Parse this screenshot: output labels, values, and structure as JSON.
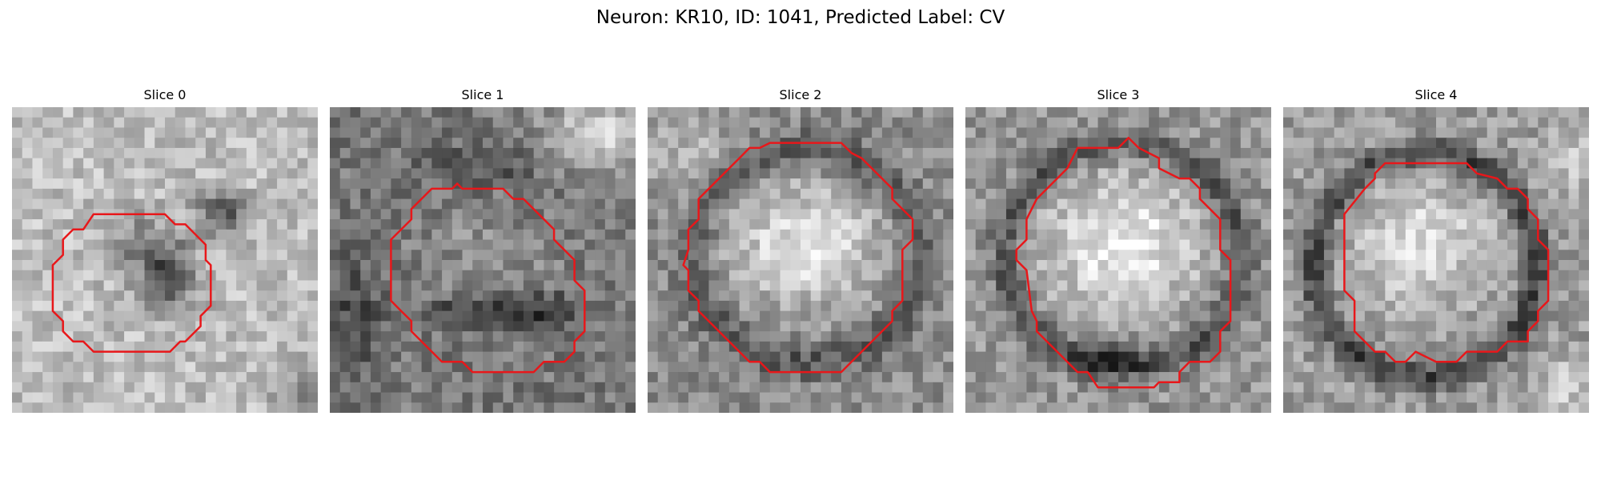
{
  "figure": {
    "title": "Neuron: KR10, ID: 1041, Predicted Label: CV"
  },
  "panels": [
    {
      "title": "Slice 0",
      "description": "grayscale patch with dark blob right of center, red contour around roughly circular region"
    },
    {
      "title": "Slice 1",
      "description": "darker patch with dark bands, red octagonal contour"
    },
    {
      "title": "Slice 2",
      "description": "bright oval region surrounded by red contour"
    },
    {
      "title": "Slice 3",
      "description": "bright oval region surrounded by red contour"
    },
    {
      "title": "Slice 4",
      "description": "bright circular region inside dark ring, red contour"
    }
  ],
  "colors": {
    "contour": "#e8171a",
    "background": "#ffffff"
  }
}
